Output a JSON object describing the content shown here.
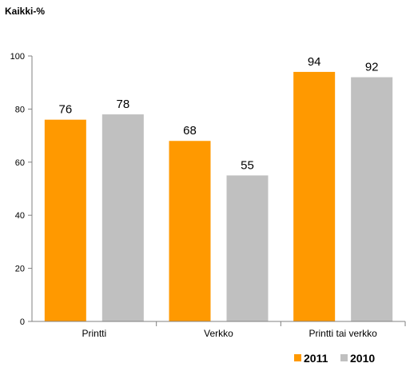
{
  "chart_data": {
    "type": "bar",
    "ylabel": "Kaikki-%",
    "categories": [
      "Printti",
      "Verkko",
      "Printti tai verkko"
    ],
    "series": [
      {
        "name": "2011",
        "color": "#FF9900",
        "values": [
          76,
          68,
          94
        ]
      },
      {
        "name": "2010",
        "color": "#C0C0C0",
        "values": [
          78,
          55,
          92
        ]
      }
    ],
    "ylim": [
      0,
      100
    ],
    "yticks": [
      "0",
      "20",
      "40",
      "60",
      "80",
      "100"
    ],
    "data_labels": true,
    "grid": false,
    "legend_position": "bottom-right"
  }
}
